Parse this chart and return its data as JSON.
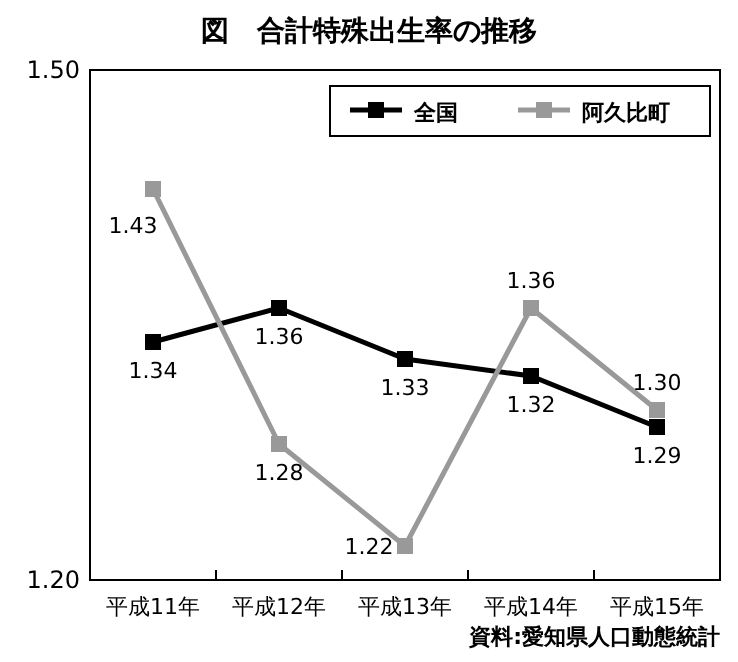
{
  "chart_data": {
    "type": "line",
    "title": "図　合計特殊出生率の推移",
    "categories": [
      "平成11年",
      "平成12年",
      "平成13年",
      "平成14年",
      "平成15年"
    ],
    "series": [
      {
        "name": "全国",
        "color": "#000000",
        "values": [
          1.34,
          1.36,
          1.33,
          1.32,
          1.29
        ],
        "value_labels": [
          "1.34",
          "1.36",
          "1.33",
          "1.32",
          "1.29"
        ]
      },
      {
        "name": "阿久比町",
        "color": "#999999",
        "values": [
          1.43,
          1.28,
          1.22,
          1.36,
          1.3
        ],
        "value_labels": [
          "1.43",
          "1.28",
          "1.22",
          "1.36",
          "1.30"
        ]
      }
    ],
    "ylim": [
      1.2,
      1.5
    ],
    "yticks": [
      {
        "value": 1.2,
        "label": "1.20"
      },
      {
        "value": 1.5,
        "label": "1.50"
      }
    ],
    "marker": "square",
    "line_style": "solid",
    "grid": false,
    "legend": "top right",
    "annotations": [
      "資料:愛知県人口動態統計"
    ]
  }
}
